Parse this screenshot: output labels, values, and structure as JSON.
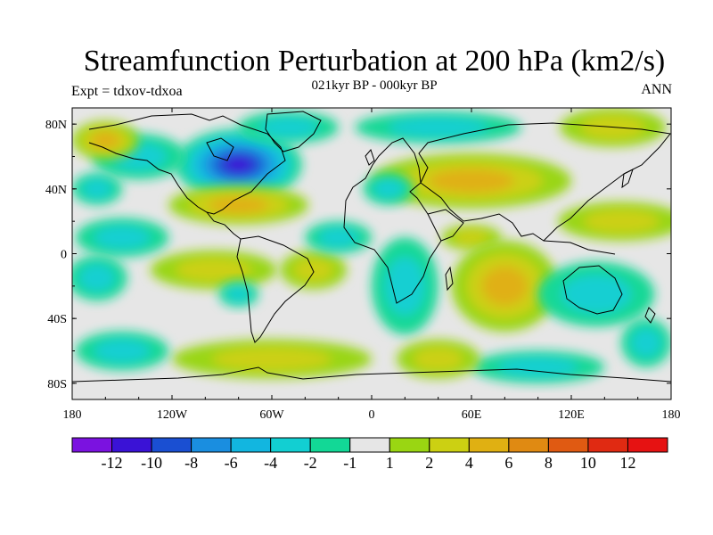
{
  "title": "Streamfunction Perturbation at 200 hPa (km2/s)",
  "subtitle": "021kyr BP - 000kyr BP",
  "left_label": "Expt = tdxov-tdxoa",
  "right_label": "ANN",
  "map": {
    "lon_range": [
      -180,
      180
    ],
    "lat_range": [
      -90,
      90
    ],
    "lon_ticks": [
      {
        "value": -180,
        "label": "180"
      },
      {
        "value": -120,
        "label": "120W"
      },
      {
        "value": -60,
        "label": "60W"
      },
      {
        "value": 0,
        "label": "0"
      },
      {
        "value": 60,
        "label": "60E"
      },
      {
        "value": 120,
        "label": "120E"
      },
      {
        "value": 180,
        "label": "180"
      }
    ],
    "lat_ticks": [
      {
        "value": 80,
        "label": "80N"
      },
      {
        "value": 40,
        "label": "40N"
      },
      {
        "value": 0,
        "label": "0"
      },
      {
        "value": -40,
        "label": "40S"
      },
      {
        "value": -80,
        "label": "80S"
      }
    ],
    "field_blobs": [
      {
        "lon": -80,
        "lat": 55,
        "rx": 38,
        "ry": 22,
        "value": -10
      },
      {
        "lon": -140,
        "lat": 60,
        "rx": 28,
        "ry": 14,
        "value": -3
      },
      {
        "lon": -50,
        "lat": 78,
        "rx": 30,
        "ry": 10,
        "value": -3
      },
      {
        "lon": 40,
        "lat": 78,
        "rx": 50,
        "ry": 10,
        "value": -2
      },
      {
        "lon": -160,
        "lat": 70,
        "rx": 20,
        "ry": 12,
        "value": 5
      },
      {
        "lon": -80,
        "lat": 30,
        "rx": 42,
        "ry": 12,
        "value": 4
      },
      {
        "lon": 60,
        "lat": 45,
        "rx": 60,
        "ry": 17,
        "value": 5
      },
      {
        "lon": 145,
        "lat": 78,
        "rx": 32,
        "ry": 12,
        "value": 2
      },
      {
        "lon": 150,
        "lat": 20,
        "rx": 38,
        "ry": 12,
        "value": 2
      },
      {
        "lon": 60,
        "lat": 10,
        "rx": 18,
        "ry": 8,
        "value": 2
      },
      {
        "lon": -95,
        "lat": -10,
        "rx": 38,
        "ry": 12,
        "value": 3
      },
      {
        "lon": -35,
        "lat": -10,
        "rx": 20,
        "ry": 12,
        "value": 3
      },
      {
        "lon": 80,
        "lat": -20,
        "rx": 32,
        "ry": 28,
        "value": 5
      },
      {
        "lon": -150,
        "lat": 10,
        "rx": 28,
        "ry": 12,
        "value": -2
      },
      {
        "lon": -165,
        "lat": -15,
        "rx": 18,
        "ry": 14,
        "value": -2
      },
      {
        "lon": 20,
        "lat": -20,
        "rx": 20,
        "ry": 30,
        "value": -2
      },
      {
        "lon": 135,
        "lat": -25,
        "rx": 35,
        "ry": 20,
        "value": -2
      },
      {
        "lon": -80,
        "lat": -25,
        "rx": 12,
        "ry": 8,
        "value": -2
      },
      {
        "lon": -60,
        "lat": -65,
        "rx": 60,
        "ry": 12,
        "value": 2
      },
      {
        "lon": -150,
        "lat": -60,
        "rx": 28,
        "ry": 12,
        "value": -2
      },
      {
        "lon": 100,
        "lat": -70,
        "rx": 40,
        "ry": 10,
        "value": -2
      },
      {
        "lon": 165,
        "lat": -55,
        "rx": 15,
        "ry": 15,
        "value": -2
      },
      {
        "lon": 40,
        "lat": -65,
        "rx": 25,
        "ry": 12,
        "value": 2
      },
      {
        "lon": -20,
        "lat": 10,
        "rx": 20,
        "ry": 10,
        "value": -2
      },
      {
        "lon": 10,
        "lat": 40,
        "rx": 15,
        "ry": 10,
        "value": -2
      },
      {
        "lon": -165,
        "lat": 40,
        "rx": 15,
        "ry": 10,
        "value": -2
      }
    ]
  },
  "colorbar": {
    "levels": [
      -12,
      -10,
      -8,
      -6,
      -4,
      -2,
      -1,
      1,
      2,
      4,
      6,
      8,
      10,
      12
    ],
    "labels": [
      "-12",
      "-10",
      "-8",
      "-6",
      "-4",
      "-2",
      "-1",
      "1",
      "2",
      "4",
      "6",
      "8",
      "10",
      "12"
    ],
    "colors": [
      "#7b12e0",
      "#3a12d6",
      "#1a4fd2",
      "#1a8ee0",
      "#12b6e0",
      "#12cfd2",
      "#12d896",
      "#e6e6e6",
      "#9ad612",
      "#ccd012",
      "#e0b012",
      "#e08a12",
      "#e05a12",
      "#e02a12",
      "#e61212"
    ]
  }
}
